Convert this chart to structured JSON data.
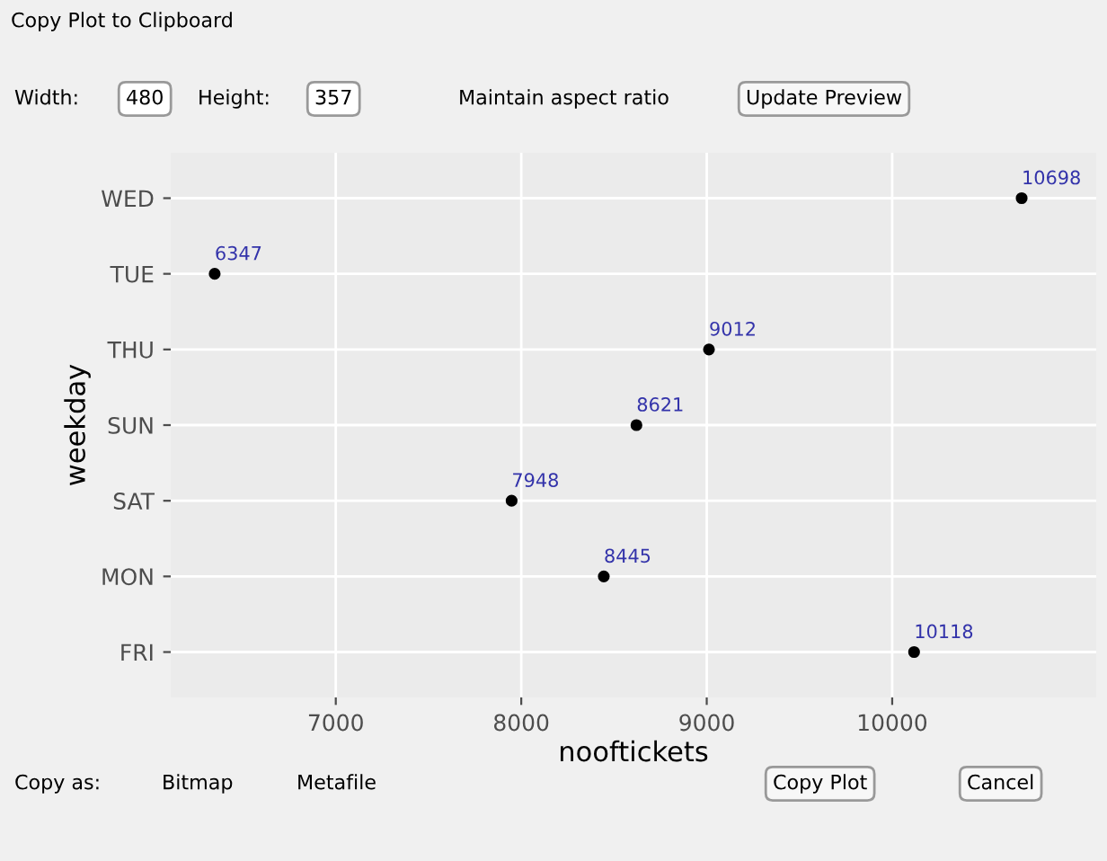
{
  "chart_data": {
    "type": "scatter",
    "orientation": "horizontal",
    "xlabel": "nooftickets",
    "ylabel": "weekday",
    "categories": [
      "WED",
      "TUE",
      "THU",
      "SUN",
      "SAT",
      "MON",
      "FRI"
    ],
    "values": [
      10698,
      6347,
      9012,
      8621,
      7948,
      8445,
      10118
    ],
    "color": "#000000",
    "data_labels": true,
    "marker": "circle",
    "xlim": [
      6110,
      11100
    ],
    "xticks": [
      7000,
      8000,
      9000,
      10000
    ],
    "grid": true,
    "annotations": [
      "Copy Plot to Clipboard",
      "Width:",
      "480",
      "Height:",
      "357",
      "Maintain aspect ratio",
      "Update Preview",
      "Copy as:",
      "Bitmap",
      "Metafile",
      "Copy Plot",
      "Cancel"
    ]
  }
}
